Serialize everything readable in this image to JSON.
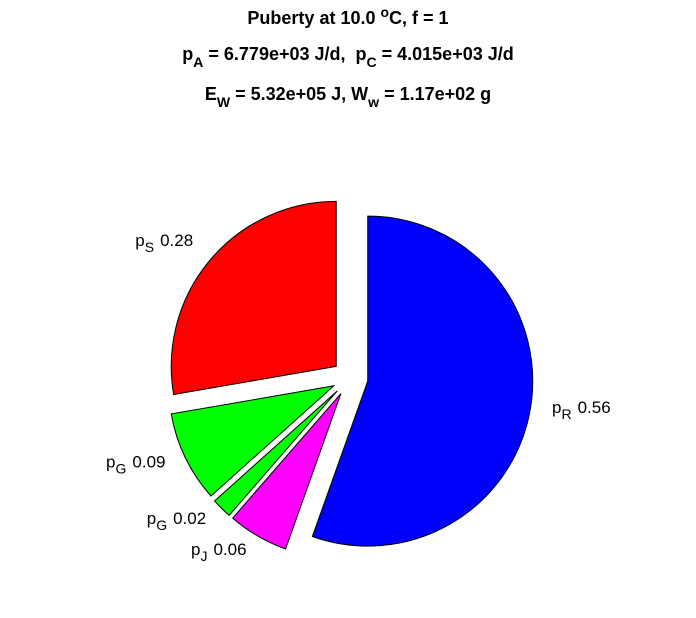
{
  "chart_data": {
    "type": "pie",
    "title": [
      [
        "Puberty at 10.0 ",
        {
          "sup": "o"
        },
        "C, f = 1"
      ],
      [
        "p",
        {
          "sub": "A"
        },
        " = 6.779e+03 J/d,  p",
        {
          "sub": "C"
        },
        " = 4.015e+03 J/d"
      ],
      [
        "E",
        {
          "sub": "W"
        },
        " = 5.32e+05 J, W",
        {
          "sub": "w"
        },
        " = 1.17e+02 g"
      ]
    ],
    "categories": [
      {
        "text": "p",
        "sub": "R"
      },
      {
        "text": "p",
        "sub": "J"
      },
      {
        "text": "p",
        "sub": "G"
      },
      {
        "text": "p",
        "sub": "G"
      },
      {
        "text": "p",
        "sub": "S"
      }
    ],
    "values": [
      0.56,
      0.06,
      0.02,
      0.09,
      0.28
    ],
    "colors": [
      "#0000ff",
      "#ff00ff",
      "#00ff00",
      "#00ff00",
      "#ff0000"
    ],
    "explode": true
  }
}
